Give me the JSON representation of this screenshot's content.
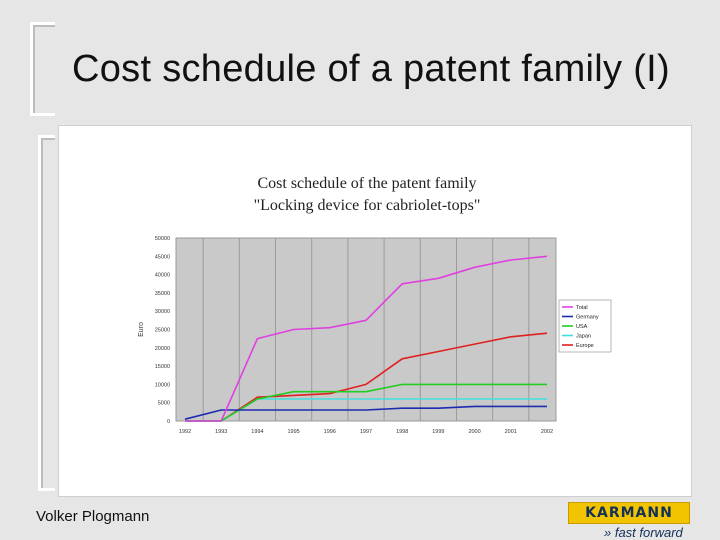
{
  "slide": {
    "title": "Cost schedule of a patent family (I)",
    "author": "Volker Plogmann",
    "logo_text": "KARMANN",
    "logo_slogan": "» fast forward"
  },
  "chart_data": {
    "type": "line",
    "title_lines": [
      "Cost schedule of the patent family",
      "\"Locking device for cabriolet-tops\""
    ],
    "ylabel": "Euro",
    "xlabel": "",
    "x": [
      "1992",
      "1993",
      "1994",
      "1995",
      "1996",
      "1997",
      "1998",
      "1999",
      "2000",
      "2001",
      "2002"
    ],
    "ylim": [
      0,
      50000
    ],
    "yticks": [
      0,
      5000,
      10000,
      15000,
      20000,
      25000,
      30000,
      35000,
      40000,
      45000,
      50000
    ],
    "grid": "vertical",
    "legend_position": "right",
    "series": [
      {
        "name": "Total",
        "color": "#e040e0",
        "values": [
          0,
          0,
          22500,
          25000,
          25500,
          27500,
          37500,
          39000,
          42000,
          44000,
          45000
        ]
      },
      {
        "name": "Germany",
        "color": "#1c2bb0",
        "values": [
          500,
          3000,
          3000,
          3000,
          3000,
          3000,
          3500,
          3500,
          4000,
          4000,
          4000
        ]
      },
      {
        "name": "USA",
        "color": "#22cc22",
        "values": [
          0,
          0,
          6000,
          8000,
          8000,
          8000,
          10000,
          10000,
          10000,
          10000,
          10000
        ]
      },
      {
        "name": "Japan",
        "color": "#44dddd",
        "values": [
          0,
          0,
          6000,
          6000,
          6000,
          6000,
          6000,
          6000,
          6000,
          6000,
          6000
        ]
      },
      {
        "name": "Europe",
        "color": "#e02020",
        "values": [
          0,
          0,
          6500,
          7000,
          7500,
          10000,
          17000,
          19000,
          21000,
          23000,
          24000
        ]
      }
    ]
  }
}
